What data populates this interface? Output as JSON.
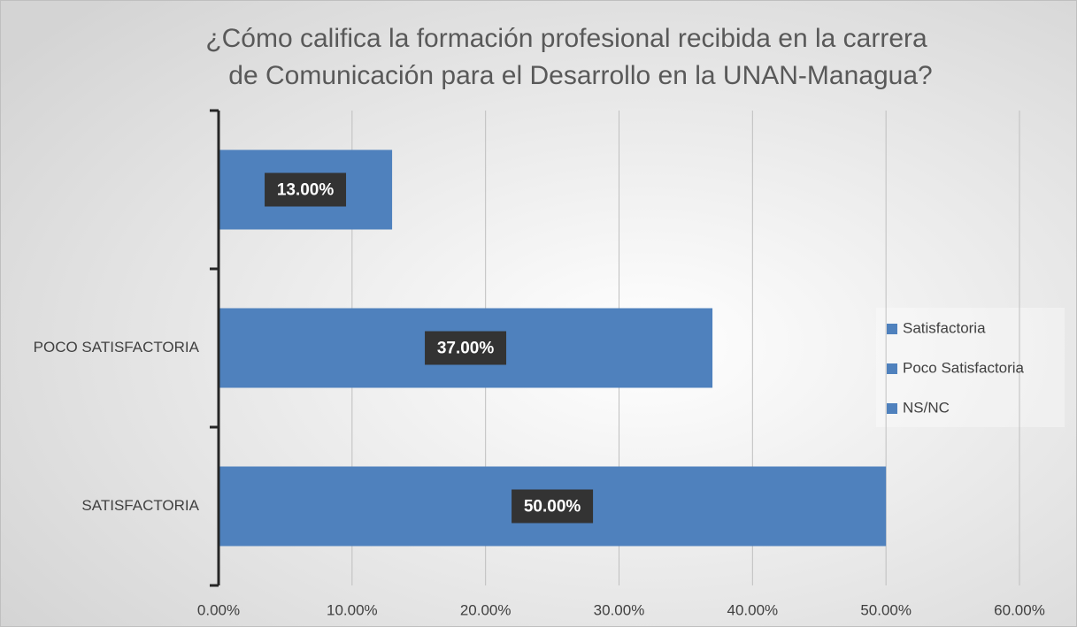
{
  "chart_data": {
    "type": "barh",
    "title": [
      "¿Cómo califica la formación profesional recibida en la carrera",
      "de Comunicación para el Desarrollo  en la UNAN-Managua?"
    ],
    "categories": [
      "SATISFACTORIA",
      "POCO SATISFACTORIA",
      null
    ],
    "values": [
      50,
      37,
      13
    ],
    "value_labels": [
      "50.00%",
      "37.00%",
      "13.00%"
    ],
    "color": "#4f81bd",
    "xlim": [
      0,
      60
    ],
    "xticks": [
      {
        "value": 0,
        "label": "0.00%"
      },
      {
        "value": 10,
        "label": "10.00%"
      },
      {
        "value": 20,
        "label": "20.00%"
      },
      {
        "value": 30,
        "label": "30.00%"
      },
      {
        "value": 40,
        "label": "40.00%"
      },
      {
        "value": 50,
        "label": "50.00%"
      },
      {
        "value": 60,
        "label": "60.00%"
      }
    ],
    "grid": true,
    "legend": [
      {
        "name": "Satisfactoria",
        "color": "#4f81bd"
      },
      {
        "name": "Poco Satisfactoria",
        "color": "#4f81bd"
      },
      {
        "name": "NS/NC",
        "color": "#4f81bd"
      }
    ],
    "legend_position": "right"
  }
}
